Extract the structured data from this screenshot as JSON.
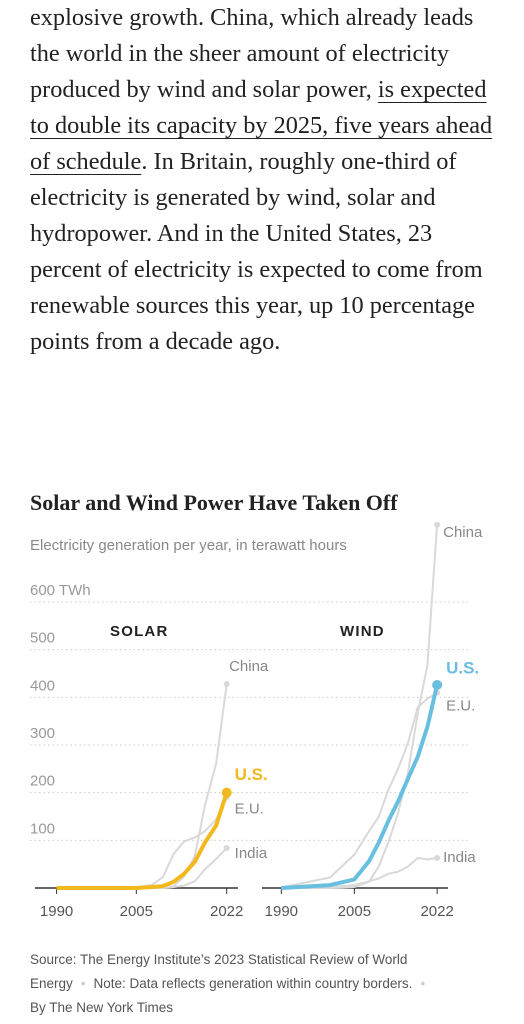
{
  "article": {
    "paragraph": [
      "explosive growth. China, which already leads the world in the sheer amount of electricity produced by wind and solar power, ",
      "is expected to double its capacity by 2025, five years ahead of schedule",
      ". In Britain, roughly one-third of electricity is generated by wind, solar and hydropower. And in the United States, 23 percent of electricity is expected to come from renewable sources this year, up 10 percentage points from a decade ago."
    ]
  },
  "figure": {
    "title": "Solar and Wind Power Have Taken Off",
    "subtitle": "Electricity generation per year, in terawatt hours",
    "source": "Source: The Energy Institute’s 2023 Statistical Review of World Energy",
    "note": "Note: Data reflects generation within country borders.",
    "credit": "By The New York Times"
  },
  "chart_data": [
    {
      "type": "line",
      "title": "SOLAR",
      "x": [
        1990,
        2000,
        2005,
        2008,
        2010,
        2012,
        2014,
        2016,
        2018,
        2020,
        2022
      ],
      "xlim": [
        1985,
        2023
      ],
      "xticks": [
        1990,
        2005,
        2022
      ],
      "ylim": [
        0,
        600
      ],
      "yticks": [
        100,
        200,
        300,
        400,
        500,
        {
          "value": 600,
          "label": "600 TWh"
        }
      ],
      "grid": true,
      "series": [
        {
          "name": "China",
          "color": "#d9d9d9",
          "values": [
            0,
            0,
            0,
            0,
            1,
            4,
            24,
            67,
            177,
            261,
            428
          ]
        },
        {
          "name": "E.U.",
          "color": "#d9d9d9",
          "values": [
            0,
            0,
            1,
            7,
            23,
            71,
            98,
            106,
            120,
            144,
            190
          ]
        },
        {
          "name": "India",
          "color": "#d9d9d9",
          "values": [
            0,
            0,
            0,
            0,
            0,
            2,
            5,
            14,
            40,
            61,
            84
          ]
        },
        {
          "name": "U.S.",
          "color": "#f2b81d",
          "values": [
            0,
            0,
            0,
            2,
            4,
            13,
            30,
            55,
            97,
            131,
            200
          ]
        }
      ]
    },
    {
      "type": "line",
      "title": "WIND",
      "x": [
        1990,
        2000,
        2005,
        2008,
        2010,
        2012,
        2014,
        2016,
        2018,
        2020,
        2022
      ],
      "xlim": [
        1985,
        2023
      ],
      "xticks": [
        1990,
        2005,
        2022
      ],
      "ylim": [
        0,
        600
      ],
      "series": [
        {
          "name": "China",
          "color": "#d9d9d9",
          "values": [
            0,
            0,
            2,
            13,
            45,
            96,
            158,
            241,
            366,
            467,
            762
          ]
        },
        {
          "name": "E.U.",
          "color": "#d9d9d9",
          "values": [
            1,
            22,
            70,
            119,
            149,
            206,
            251,
            304,
            379,
            397,
            410
          ]
        },
        {
          "name": "India",
          "color": "#d9d9d9",
          "values": [
            0,
            2,
            6,
            14,
            20,
            30,
            34,
            45,
            63,
            60,
            63
          ]
        },
        {
          "name": "U.S.",
          "color": "#69bfe0",
          "values": [
            0,
            6,
            18,
            56,
            95,
            141,
            182,
            229,
            275,
            338,
            426
          ]
        }
      ]
    }
  ]
}
